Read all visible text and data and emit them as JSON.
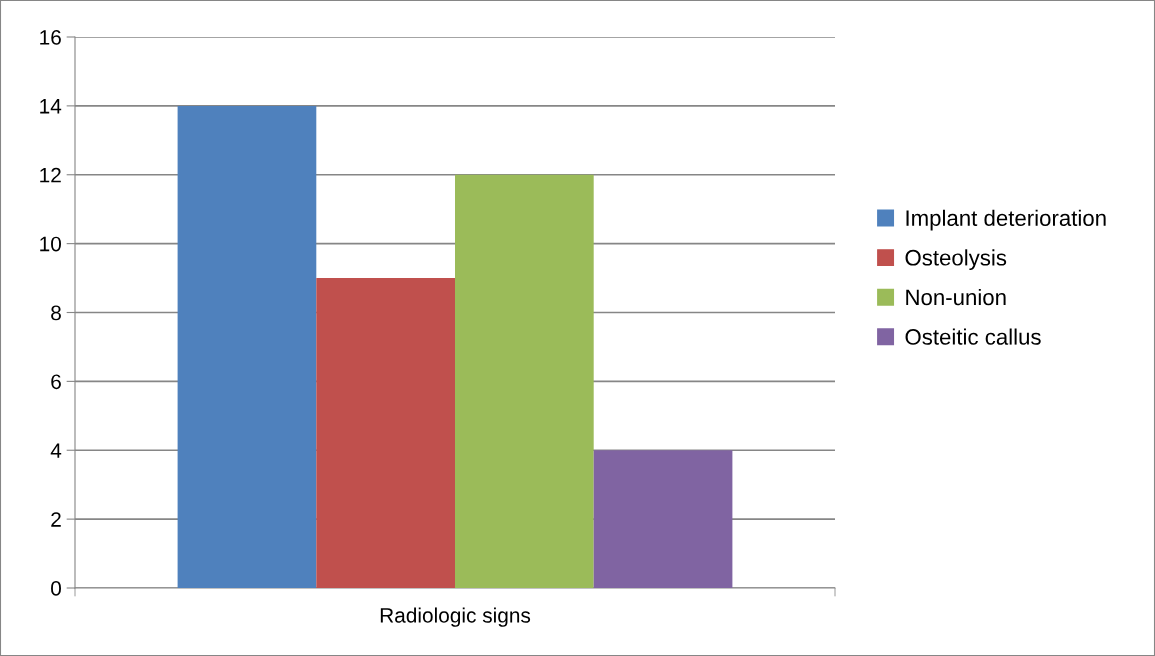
{
  "chart_data": {
    "type": "bar",
    "categories": [
      "Radiologic signs"
    ],
    "series": [
      {
        "name": "Implant deterioration",
        "color": "#4f81bd",
        "values": [
          14
        ]
      },
      {
        "name": "Osteolysis",
        "color": "#c0504d",
        "values": [
          9
        ]
      },
      {
        "name": "Non-union",
        "color": "#9bbb59",
        "values": [
          12
        ]
      },
      {
        "name": "Osteitic callus",
        "color": "#8064a2",
        "values": [
          4
        ]
      }
    ],
    "ylim": [
      0,
      16
    ],
    "yticks": [
      0,
      2,
      4,
      6,
      8,
      10,
      12,
      14,
      16
    ],
    "grid": "y",
    "legend": "right"
  }
}
